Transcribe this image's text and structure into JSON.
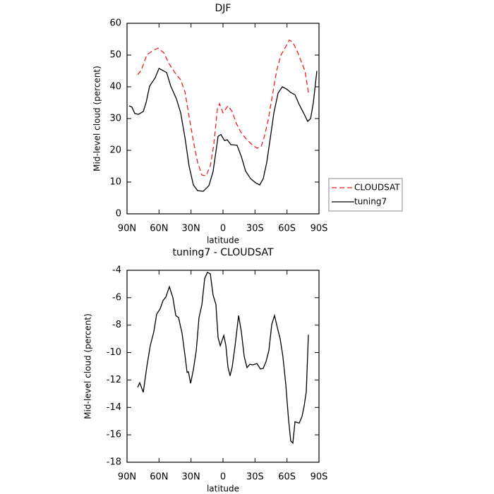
{
  "chart_data": [
    {
      "type": "line",
      "title": "DJF",
      "xlabel": "latitude",
      "ylabel": "Mid-level cloud (percent)",
      "xlim": [
        90,
        -90
      ],
      "ylim": [
        0,
        60
      ],
      "xticks": [
        {
          "value": 90,
          "label": "90N"
        },
        {
          "value": 60,
          "label": "60N"
        },
        {
          "value": 30,
          "label": "30N"
        },
        0,
        {
          "value": -30,
          "label": "30S"
        },
        {
          "value": -60,
          "label": "60S"
        },
        {
          "value": -90,
          "label": "90S"
        }
      ],
      "yticks": [
        0,
        10,
        20,
        30,
        40,
        50,
        60
      ],
      "legend": "right",
      "series": [
        {
          "name": "CLOUDSAT",
          "color": "#e8231f",
          "line_style": "dashed",
          "x": [
            80.1,
            76.8,
            71.5,
            66.2,
            60.9,
            55.6,
            50.3,
            45,
            39.7,
            35.7,
            31.8,
            27.8,
            23.8,
            19.8,
            15.9,
            11.9,
            8.6,
            5.3,
            3.3,
            0,
            -4.6,
            -8.6,
            -12.6,
            -16.6,
            -21.2,
            -26.5,
            -31.8,
            -35.7,
            -38.4,
            -42.4,
            -46.3,
            -50.3,
            -54.3,
            -58.2,
            -62.2,
            -65.5,
            -70.2,
            -74.1,
            -76.8,
            -79.4,
            -80.1
          ],
          "values": [
            43.8,
            45.1,
            50,
            51.3,
            52.2,
            50.7,
            47.1,
            44.4,
            42.2,
            38.4,
            30.7,
            22.9,
            16.2,
            12.2,
            12,
            15.1,
            21.8,
            32.9,
            34.7,
            31.8,
            34,
            32.2,
            28.4,
            25.8,
            23.8,
            22,
            20.7,
            21.1,
            23.8,
            29.6,
            37.3,
            45.1,
            50,
            52.2,
            54.7,
            54,
            50.7,
            47.3,
            45.1,
            39.6,
            38.2
          ]
        },
        {
          "name": "tuning7",
          "color": "#000000",
          "line_style": "solid",
          "x": [
            88,
            85.4,
            82.7,
            79.4,
            74.8,
            72.1,
            68.8,
            63.5,
            60,
            52.9,
            49,
            43.7,
            39.7,
            35.7,
            31.8,
            27.8,
            23.8,
            18.5,
            13.2,
            9.3,
            6.6,
            4.6,
            2,
            -1.3,
            -4,
            -7.3,
            -13.2,
            -17.2,
            -21.2,
            -25.8,
            -30.5,
            -34.4,
            -37.7,
            -41,
            -44.4,
            -47.7,
            -51.6,
            -55.6,
            -59.6,
            -63.5,
            -67.5,
            -71.5,
            -75.5,
            -79.4,
            -82.1,
            -84.7,
            -88
          ],
          "values": [
            34,
            33.6,
            31.6,
            31.3,
            32.2,
            35,
            40.2,
            42.9,
            45.8,
            44.5,
            40.2,
            36.2,
            31.8,
            24,
            15.1,
            9.1,
            7.3,
            7.1,
            8.9,
            13.3,
            19.6,
            24.4,
            25,
            23.1,
            23.3,
            21.8,
            21.6,
            18,
            13.5,
            11.1,
            9.8,
            9.1,
            11.1,
            16.2,
            24,
            31.8,
            38,
            40,
            39.3,
            38.2,
            37.5,
            34.4,
            31.8,
            29.1,
            30,
            35,
            45
          ]
        }
      ]
    },
    {
      "type": "line",
      "title": "tuning7 - CLOUDSAT",
      "xlabel": "latitude",
      "ylabel": "Mid-level cloud (percent)",
      "xlim": [
        90,
        -90
      ],
      "ylim": [
        -18,
        -4
      ],
      "xticks": [
        {
          "value": 90,
          "label": "90N"
        },
        {
          "value": 60,
          "label": "60N"
        },
        {
          "value": 30,
          "label": "30N"
        },
        0,
        {
          "value": -30,
          "label": "30S"
        },
        {
          "value": -60,
          "label": "60S"
        },
        {
          "value": -90,
          "label": "90S"
        }
      ],
      "yticks": [
        -18,
        -16,
        -14,
        -12,
        -10,
        -8,
        -6,
        -4
      ],
      "series": [
        {
          "color": "#000000",
          "line_style": "solid",
          "x": [
            80.1,
            78.1,
            74.8,
            71.5,
            68.2,
            64.9,
            62.2,
            58.9,
            56.2,
            53.6,
            50.3,
            47,
            44.3,
            41.7,
            38.4,
            35.7,
            33.7,
            32.4,
            30.4,
            27.8,
            25.1,
            22.5,
            19.8,
            17.2,
            14.6,
            11.9,
            9.3,
            6.6,
            4.6,
            2.6,
            -0.7,
            -2.7,
            -4.6,
            -6.6,
            -8.6,
            -11.3,
            -14.6,
            -17.2,
            -19.9,
            -22.5,
            -25.2,
            -27.8,
            -31.8,
            -35.1,
            -37.7,
            -40.4,
            -43,
            -45.7,
            -48.3,
            -51,
            -53.6,
            -56.2,
            -58.9,
            -61.5,
            -63.5,
            -65.5,
            -67.5,
            -71.5,
            -74.1,
            -76.1,
            -78.1,
            -80.1
          ],
          "values": [
            -12.54,
            -12.2,
            -12.9,
            -11.05,
            -9.5,
            -8.5,
            -7.2,
            -6.8,
            -6.2,
            -5.95,
            -5.2,
            -6,
            -7.3,
            -7.45,
            -8.6,
            -10.2,
            -11.45,
            -11.4,
            -12.25,
            -11.25,
            -9.85,
            -7.45,
            -6.5,
            -4.6,
            -4.15,
            -4.25,
            -5.8,
            -6.5,
            -8.9,
            -9.5,
            -8.75,
            -9.5,
            -11.05,
            -11.7,
            -11.05,
            -9.5,
            -7.3,
            -8.5,
            -10.3,
            -11.1,
            -10.85,
            -10.9,
            -10.8,
            -11.2,
            -11.15,
            -10.65,
            -9.85,
            -7.95,
            -7.3,
            -8.2,
            -9,
            -10.3,
            -12.35,
            -14.9,
            -16.45,
            -16.6,
            -15.05,
            -15.15,
            -14.65,
            -13.9,
            -12.85,
            -8.7
          ]
        }
      ]
    }
  ]
}
